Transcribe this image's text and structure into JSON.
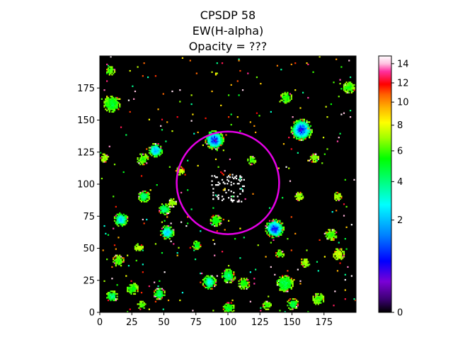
{
  "chart_data": {
    "type": "heatmap",
    "title_lines": [
      "CPSDP 58",
      "EW(H-alpha)",
      "Opacity = ???"
    ],
    "xlim": [
      0,
      200
    ],
    "ylim": [
      0,
      200
    ],
    "x_ticks": [
      0,
      25,
      50,
      75,
      100,
      125,
      150,
      175
    ],
    "y_ticks": [
      0,
      25,
      50,
      75,
      100,
      125,
      150,
      175
    ],
    "colorbar": {
      "colormap": "gist_ncar-like (black-purple-blue-cyan-green-yellow-orange-red-pink-white)",
      "scale": "nonlinear",
      "range": [
        0,
        15
      ],
      "ticks": [
        0,
        2,
        4,
        6,
        8,
        10,
        12,
        14
      ]
    },
    "background_value": 0,
    "aperture_circle": {
      "center": [
        100,
        101
      ],
      "radius": 40,
      "color": "#e600e6"
    },
    "blobs": [
      {
        "x": 157,
        "y": 142,
        "r": 7,
        "peak": 1.0
      },
      {
        "x": 89,
        "y": 134,
        "r": 6,
        "peak": 1.0
      },
      {
        "x": 136,
        "y": 65,
        "r": 6,
        "peak": 1.0
      },
      {
        "x": 43,
        "y": 126,
        "r": 4,
        "peak": 1.8
      },
      {
        "x": 16,
        "y": 72,
        "r": 4,
        "peak": 2.5
      },
      {
        "x": 52,
        "y": 62,
        "r": 4,
        "peak": 2.2
      },
      {
        "x": 9,
        "y": 162,
        "r": 5,
        "peak": 5.0
      },
      {
        "x": 144,
        "y": 22,
        "r": 5,
        "peak": 4.5
      },
      {
        "x": 85,
        "y": 23,
        "r": 4,
        "peak": 3.0
      },
      {
        "x": 100,
        "y": 28,
        "r": 4,
        "peak": 4.0
      },
      {
        "x": 46,
        "y": 14,
        "r": 3,
        "peak": 4.0
      },
      {
        "x": 9,
        "y": 12,
        "r": 3,
        "peak": 4.0
      },
      {
        "x": 145,
        "y": 167,
        "r": 3,
        "peak": 5.5
      },
      {
        "x": 194,
        "y": 175,
        "r": 3,
        "peak": 5.5
      },
      {
        "x": 50,
        "y": 80,
        "r": 3,
        "peak": 3.5
      },
      {
        "x": 34,
        "y": 90,
        "r": 3,
        "peak": 4.0
      },
      {
        "x": 90,
        "y": 71,
        "r": 3,
        "peak": 5.0
      },
      {
        "x": 150,
        "y": 6,
        "r": 3,
        "peak": 4.5
      },
      {
        "x": 180,
        "y": 60,
        "r": 3,
        "peak": 6.0
      },
      {
        "x": 186,
        "y": 45,
        "r": 3,
        "peak": 7.5
      },
      {
        "x": 75,
        "y": 52,
        "r": 2,
        "peak": 5.0
      },
      {
        "x": 14,
        "y": 40,
        "r": 3,
        "peak": 6.0
      },
      {
        "x": 170,
        "y": 10,
        "r": 3,
        "peak": 6.0
      },
      {
        "x": 118,
        "y": 118,
        "r": 2,
        "peak": 6.0
      },
      {
        "x": 33,
        "y": 119,
        "r": 3,
        "peak": 6.0
      },
      {
        "x": 8,
        "y": 188,
        "r": 2,
        "peak": 6.0
      },
      {
        "x": 185,
        "y": 90,
        "r": 2,
        "peak": 7.0
      },
      {
        "x": 25,
        "y": 18,
        "r": 3,
        "peak": 5.5
      },
      {
        "x": 112,
        "y": 22,
        "r": 3,
        "peak": 5.5
      },
      {
        "x": 32,
        "y": 5,
        "r": 2,
        "peak": 6.0
      },
      {
        "x": 100,
        "y": 3,
        "r": 3,
        "peak": 5.0
      },
      {
        "x": 130,
        "y": 5,
        "r": 2,
        "peak": 6.0
      },
      {
        "x": 160,
        "y": 38,
        "r": 2,
        "peak": 7.0
      },
      {
        "x": 56,
        "y": 85,
        "r": 2,
        "peak": 7.0
      },
      {
        "x": 30,
        "y": 50,
        "r": 2,
        "peak": 7.0
      },
      {
        "x": 140,
        "y": 45,
        "r": 2,
        "peak": 6.0
      },
      {
        "x": 167,
        "y": 120,
        "r": 2,
        "peak": 6.5
      },
      {
        "x": 3,
        "y": 120,
        "r": 2,
        "peak": 7.0
      },
      {
        "x": 155,
        "y": 90,
        "r": 2,
        "peak": 7.0
      },
      {
        "x": 62,
        "y": 110,
        "r": 2,
        "peak": 7.5
      }
    ],
    "central_white_patch": {
      "x": 100,
      "y": 96,
      "value": 15
    },
    "colorbar_gradient": [
      [
        "#000000",
        0.0
      ],
      [
        "#3a0070",
        0.05
      ],
      [
        "#7a00d6",
        0.12
      ],
      [
        "#0000ff",
        0.2
      ],
      [
        "#0080ff",
        0.3
      ],
      [
        "#00ffff",
        0.42
      ],
      [
        "#00ff60",
        0.53
      ],
      [
        "#00ff00",
        0.6
      ],
      [
        "#a0ff00",
        0.68
      ],
      [
        "#ffff00",
        0.74
      ],
      [
        "#ffb000",
        0.8
      ],
      [
        "#ff6000",
        0.85
      ],
      [
        "#ff0000",
        0.89
      ],
      [
        "#ff30a0",
        0.94
      ],
      [
        "#ffc0e0",
        0.97
      ],
      [
        "#ffffff",
        1.0
      ]
    ]
  }
}
